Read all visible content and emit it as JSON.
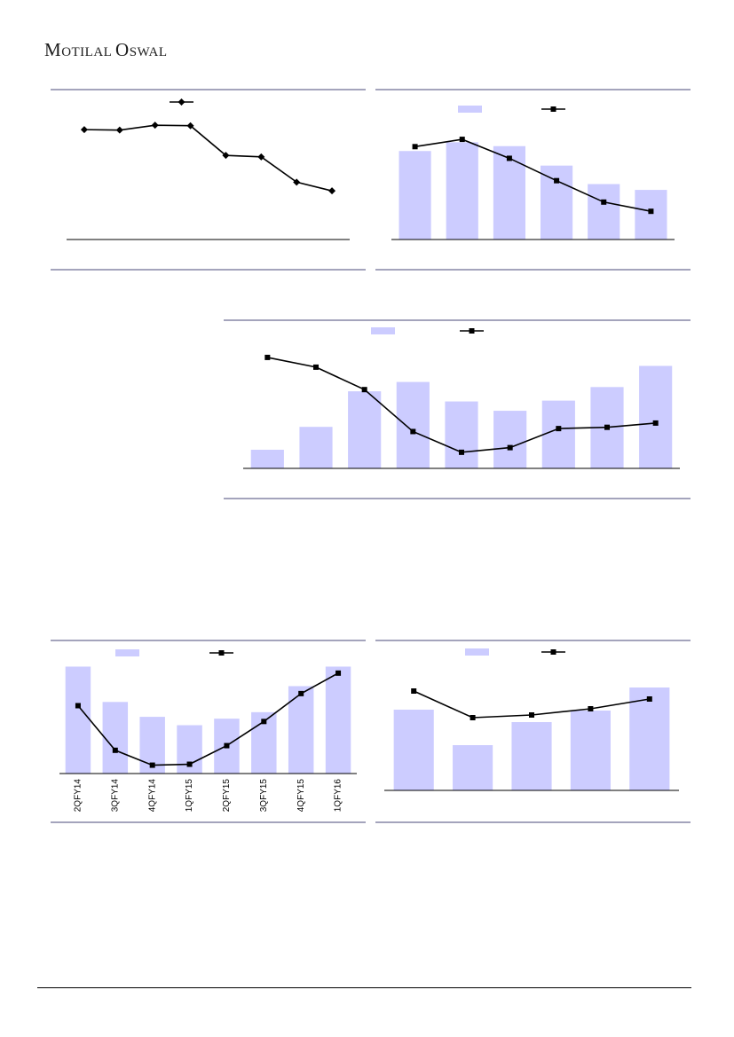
{
  "header": {
    "logo_parts": [
      {
        "text": "M",
        "size": "big"
      },
      {
        "text": "otilal",
        "size": "small"
      },
      {
        "text": " ",
        "size": "small"
      },
      {
        "text": "O",
        "size": "big"
      },
      {
        "text": "swal",
        "size": "small"
      }
    ]
  },
  "colors": {
    "bar": "#ccccff",
    "line": "#000000",
    "rule": "#4a4a78",
    "axis": "#000000"
  },
  "chart_data": [
    {
      "type": "line",
      "title": "",
      "legend": {
        "placement": "top-center",
        "entries": [
          {
            "kind": "line",
            "marker": "diamond",
            "name": ""
          }
        ]
      },
      "x": [
        1,
        2,
        3,
        4,
        5,
        6,
        7,
        8
      ],
      "series": [
        {
          "kind": "line",
          "marker": "diamond",
          "values": [
            113,
            112.5,
            117.5,
            117,
            86.5,
            85,
            59,
            50
          ]
        }
      ],
      "ylim": [
        0,
        135
      ],
      "grid": false
    },
    {
      "type": "bar",
      "title": "",
      "legend": {
        "placement": "top-center",
        "entries": [
          {
            "kind": "bar",
            "name": ""
          },
          {
            "kind": "line",
            "marker": "square",
            "name": ""
          }
        ]
      },
      "x": [
        1,
        2,
        3,
        4,
        5,
        6
      ],
      "series": [
        {
          "kind": "bar",
          "values": [
            91,
            100,
            96,
            76,
            57,
            51
          ]
        },
        {
          "kind": "line",
          "marker": "square",
          "values": [
            95.5,
            103,
            83.5,
            60.5,
            38.5,
            29
          ]
        }
      ],
      "ylim": [
        0,
        135
      ],
      "grid": false
    },
    {
      "type": "bar",
      "title": "",
      "legend": {
        "placement": "top-center",
        "entries": [
          {
            "kind": "bar",
            "name": ""
          },
          {
            "kind": "line",
            "marker": "square",
            "name": ""
          }
        ]
      },
      "x": [
        1,
        2,
        3,
        4,
        5,
        6,
        7,
        8,
        9
      ],
      "series": [
        {
          "kind": "bar",
          "values": [
            22,
            49,
            91,
            102,
            79,
            68,
            80,
            96,
            121
          ]
        },
        {
          "kind": "line",
          "marker": "square",
          "values": [
            131,
            119.5,
            93,
            43.5,
            19,
            24.5,
            47,
            48.5,
            53.5
          ]
        }
      ],
      "ylim": [
        0,
        155
      ],
      "grid": false
    },
    {
      "type": "bar",
      "title": "",
      "legend": {
        "placement": "top-center",
        "entries": [
          {
            "kind": "bar",
            "name": ""
          },
          {
            "kind": "line",
            "marker": "square",
            "name": ""
          }
        ]
      },
      "categories": [
        "2QFY14",
        "3QFY14",
        "4QFY14",
        "1QFY15",
        "2QFY15",
        "3QFY15",
        "4QFY15",
        "1QFY16"
      ],
      "series": [
        {
          "kind": "bar",
          "values": [
            115,
            77,
            61,
            52,
            59,
            66,
            94,
            115
          ]
        },
        {
          "kind": "line",
          "marker": "square",
          "values": [
            73,
            25,
            9,
            10,
            30,
            56,
            86,
            108
          ]
        }
      ],
      "ylim": [
        0,
        125
      ],
      "grid": false
    },
    {
      "type": "bar",
      "title": "",
      "legend": {
        "placement": "top-center",
        "entries": [
          {
            "kind": "bar",
            "name": ""
          },
          {
            "kind": "line",
            "marker": "square",
            "name": ""
          }
        ]
      },
      "x": [
        1,
        2,
        3,
        4,
        5
      ],
      "series": [
        {
          "kind": "bar",
          "values": [
            91,
            51,
            77,
            90,
            116
          ]
        },
        {
          "kind": "line",
          "marker": "square",
          "values": [
            112,
            82,
            85,
            92,
            103
          ]
        }
      ],
      "ylim": [
        0,
        150
      ],
      "grid": false
    }
  ]
}
